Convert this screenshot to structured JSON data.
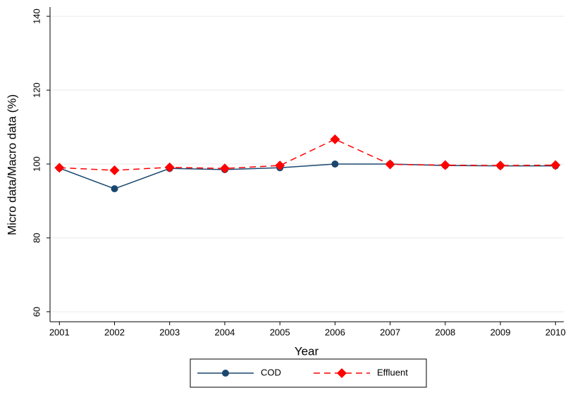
{
  "chart_data": {
    "type": "line",
    "xlabel": "Year",
    "ylabel": "Micro data/Macro data (%)",
    "x": [
      2001,
      2002,
      2003,
      2004,
      2005,
      2006,
      2007,
      2008,
      2009,
      2010
    ],
    "series": [
      {
        "name": "COD",
        "color": "#1a476f",
        "line_style": "solid",
        "marker": "circle",
        "values": [
          98.9,
          93.3,
          98.8,
          98.5,
          99.0,
          100.0,
          100.0,
          99.6,
          99.5,
          99.5
        ]
      },
      {
        "name": "Effluent",
        "color": "#ff0000",
        "line_style": "dashed",
        "marker": "diamond",
        "values": [
          99.0,
          98.3,
          99.1,
          98.8,
          99.6,
          106.7,
          99.9,
          99.7,
          99.6,
          99.7
        ]
      }
    ],
    "xlim": [
      2000.83,
      2010.15
    ],
    "xticks": [
      2001,
      2002,
      2003,
      2004,
      2005,
      2006,
      2007,
      2008,
      2009,
      2010
    ],
    "ylim": [
      57.3,
      142.5
    ],
    "yticks": [
      60,
      80,
      100,
      120,
      140
    ],
    "grid": true,
    "legend": "bottom"
  }
}
